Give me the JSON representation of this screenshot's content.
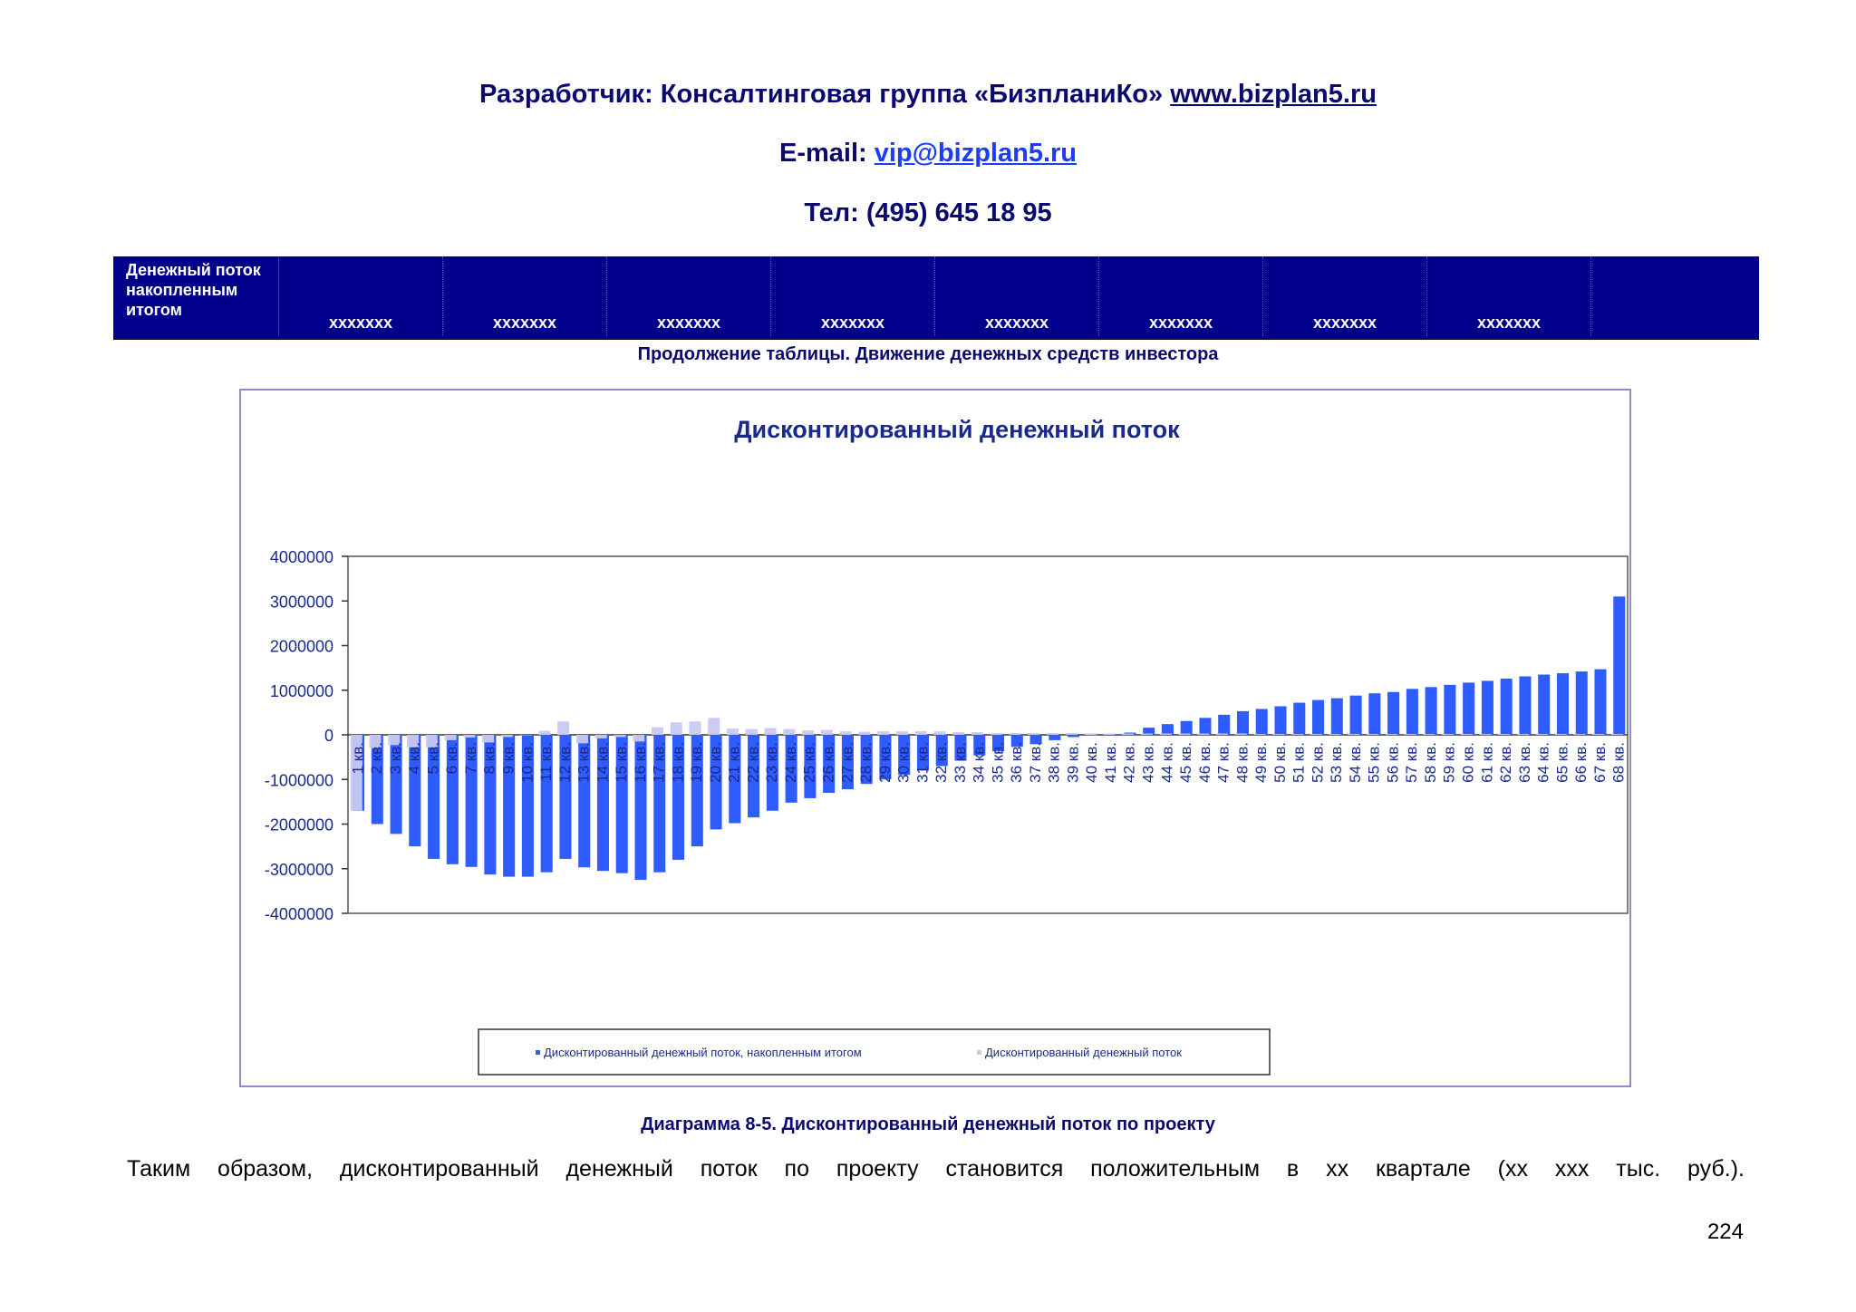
{
  "header": {
    "developer_prefix": "Разработчик: Консалтинговая группа «БизпланиКо»",
    "site_link": "www.bizplan5.ru",
    "email_prefix": "E-mail:",
    "email_link": "vip@bizplan5.ru",
    "phone": "Тел: (495) 645 18 95"
  },
  "table": {
    "row_label": "Денежный поток накопленным итогом",
    "cells": [
      "xxxxxxx",
      "xxxxxxx",
      "xxxxxxx",
      "xxxxxxx",
      "xxxxxxx",
      "xxxxxxx",
      "xxxxxxx",
      "xxxxxxx",
      ""
    ],
    "caption": "Продолжение таблицы. Движение денежных средств инвестора"
  },
  "colors": {
    "cumulative": "#2e5cff",
    "discounted": "#c9c9f2",
    "navy": "#00008b"
  },
  "chart_data": {
    "type": "bar",
    "title": "Дисконтированный денежный поток",
    "ylim": [
      -4000000,
      4000000
    ],
    "yticks": [
      "4000000",
      "3000000",
      "2000000",
      "1000000",
      "0",
      "-1000000",
      "-2000000",
      "-3000000",
      "-4000000"
    ],
    "categories": [
      "1 кв.",
      "2 кв.",
      "3 кв.",
      "4 кв.",
      "5 кв.",
      "6 кв.",
      "7 кв.",
      "8 кв.",
      "9 кв.",
      "10 кв.",
      "11 кв.",
      "12 кв.",
      "13 кв.",
      "14 кв.",
      "15 кв.",
      "16 кв.",
      "17 кв.",
      "18 кв.",
      "19 кв.",
      "20 кв.",
      "21 кв.",
      "22 кв.",
      "23 кв.",
      "24 кв.",
      "25 кв.",
      "26 кв.",
      "27 кв.",
      "28 кв.",
      "29 кв.",
      "30 кв.",
      "31 кв.",
      "32 кв.",
      "33 кв.",
      "34 кв.",
      "35 кв.",
      "36 кв.",
      "37 кв.",
      "38 кв.",
      "39 кв.",
      "40 кв.",
      "41 кв.",
      "42 кв.",
      "43 кв.",
      "44 кв.",
      "45 кв.",
      "46 кв.",
      "47 кв.",
      "48 кв.",
      "49 кв.",
      "50 кв.",
      "51 кв.",
      "52 кв.",
      "53 кв.",
      "54 кв.",
      "55 кв.",
      "56 кв.",
      "57 кв.",
      "58 кв.",
      "59 кв.",
      "60 кв.",
      "61 кв.",
      "62 кв.",
      "63 кв.",
      "64 кв.",
      "65 кв.",
      "66 кв.",
      "67 кв.",
      "68 кв."
    ],
    "series": [
      {
        "name": "Дисконтированный денежный поток, накопленным итогом",
        "values": [
          -1700000,
          -2000000,
          -2220000,
          -2500000,
          -2780000,
          -2900000,
          -2960000,
          -3130000,
          -3180000,
          -3180000,
          -3080000,
          -2780000,
          -2970000,
          -3050000,
          -3100000,
          -3250000,
          -3080000,
          -2800000,
          -2500000,
          -2120000,
          -1980000,
          -1850000,
          -1700000,
          -1520000,
          -1420000,
          -1300000,
          -1220000,
          -1100000,
          -1000000,
          -900000,
          -800000,
          -700000,
          -580000,
          -460000,
          -370000,
          -270000,
          -210000,
          -120000,
          -50000,
          0,
          20000,
          50000,
          160000,
          240000,
          310000,
          380000,
          450000,
          530000,
          580000,
          640000,
          720000,
          780000,
          820000,
          880000,
          930000,
          960000,
          1030000,
          1070000,
          1120000,
          1170000,
          1210000,
          1260000,
          1310000,
          1350000,
          1380000,
          1420000,
          1470000,
          3100000
        ]
      },
      {
        "name": "Дисконтированный денежный поток",
        "values": [
          -1700000,
          -300000,
          -230000,
          -280000,
          -280000,
          -120000,
          -60000,
          -170000,
          -50000,
          0,
          90000,
          300000,
          -190000,
          -80000,
          -50000,
          -150000,
          170000,
          280000,
          300000,
          380000,
          140000,
          130000,
          150000,
          130000,
          100000,
          110000,
          80000,
          70000,
          80000,
          80000,
          80000,
          80000,
          60000,
          60000,
          40000,
          40000,
          40000,
          40000,
          40000,
          30000,
          30000,
          30000,
          30000,
          30000,
          30000,
          30000,
          30000,
          30000,
          20000,
          20000,
          20000,
          20000,
          20000,
          20000,
          20000,
          20000,
          20000,
          20000,
          20000,
          20000,
          20000,
          20000,
          20000,
          20000,
          20000,
          20000,
          20000,
          20000
        ]
      }
    ],
    "legend_position": "bottom",
    "caption": "Диаграмма 8-5. Дисконтированный денежный поток по проекту"
  },
  "body_text": "Таким образом, дисконтированный денежный поток по проекту становится положительным в хх квартале (хх ххх тыс. руб.).",
  "page_number": "224"
}
